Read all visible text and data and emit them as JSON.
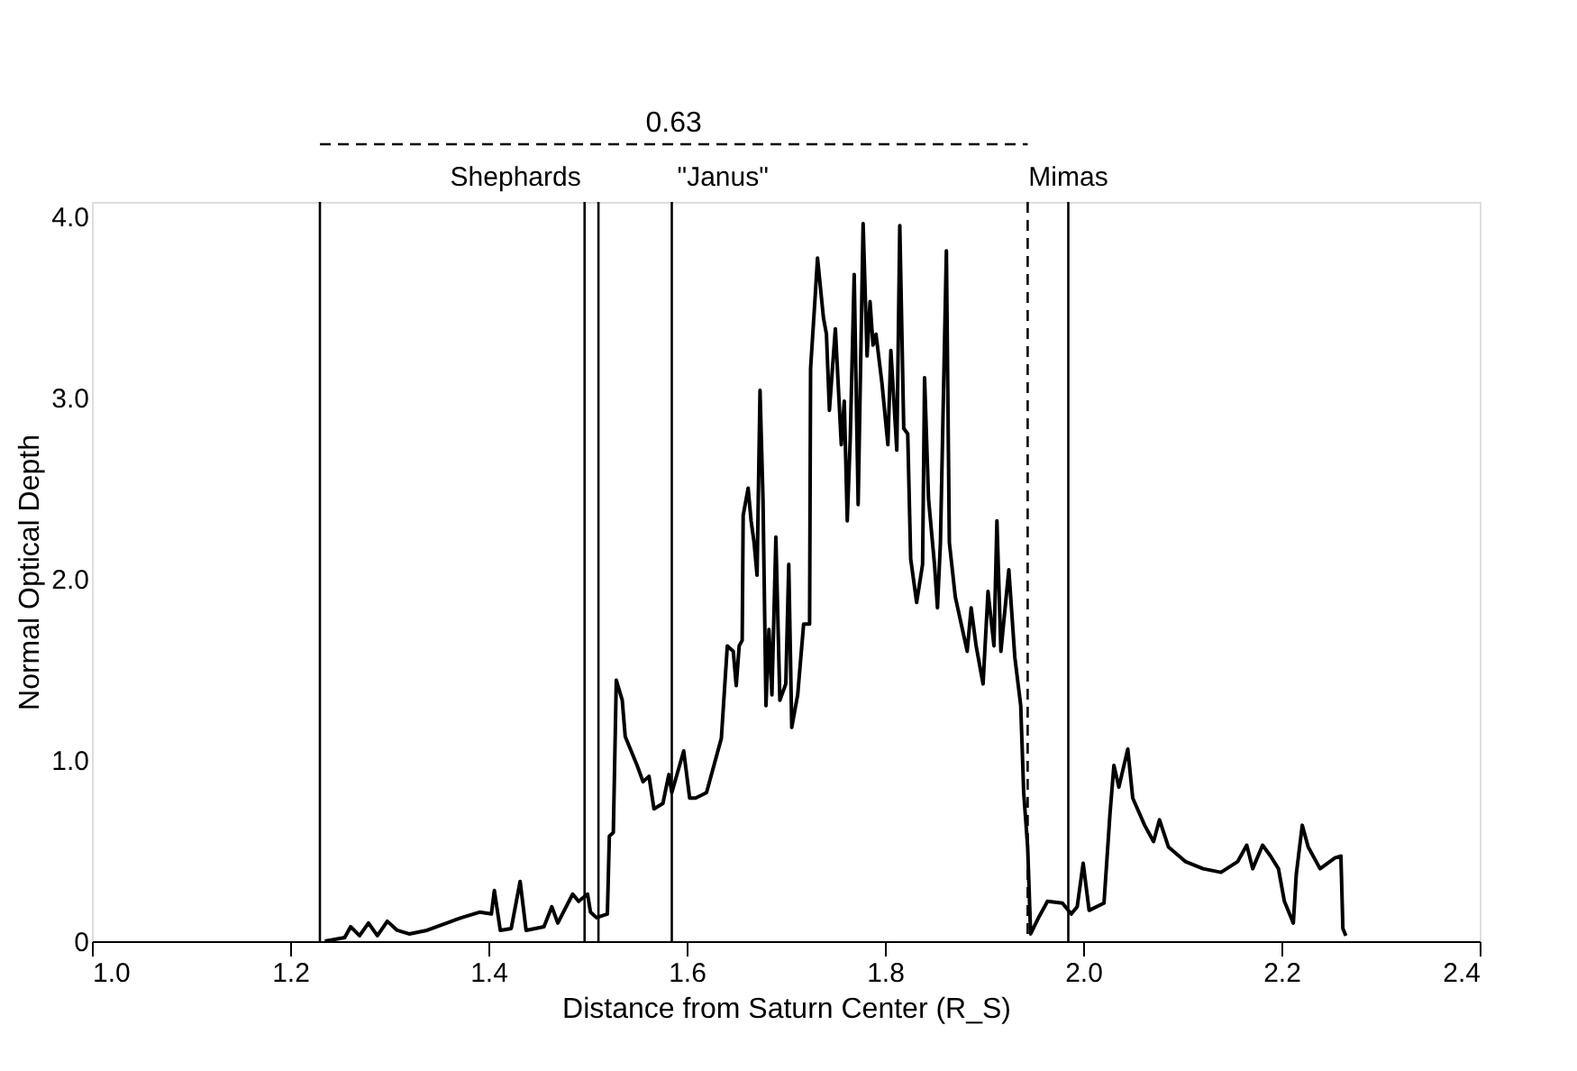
{
  "chart_data": {
    "type": "line",
    "xlabel": "Distance from Saturn Center (R_S)",
    "ylabel": "Normal Optical Depth",
    "x": [
      1.235,
      1.255,
      1.261,
      1.27,
      1.279,
      1.288,
      1.298,
      1.308,
      1.32,
      1.338,
      1.358,
      1.373,
      1.391,
      1.403,
      1.406,
      1.412,
      1.423,
      1.432,
      1.438,
      1.456,
      1.464,
      1.47,
      1.485,
      1.491,
      1.5,
      1.503,
      1.509,
      1.52,
      1.522,
      1.526,
      1.529,
      1.535,
      1.538,
      1.55,
      1.556,
      1.562,
      1.567,
      1.576,
      1.582,
      1.585,
      1.597,
      1.603,
      1.609,
      1.62,
      1.635,
      1.641,
      1.647,
      1.65,
      1.653,
      1.656,
      1.657,
      1.662,
      1.665,
      1.668,
      1.671,
      1.674,
      1.677,
      1.68,
      1.683,
      1.686,
      1.69,
      1.694,
      1.7,
      1.703,
      1.706,
      1.712,
      1.718,
      1.724,
      1.725,
      1.73,
      1.732,
      1.738,
      1.741,
      1.744,
      1.75,
      1.756,
      1.759,
      1.762,
      1.765,
      1.769,
      1.773,
      1.778,
      1.782,
      1.785,
      1.788,
      1.791,
      1.797,
      1.803,
      1.806,
      1.812,
      1.815,
      1.819,
      1.823,
      1.826,
      1.832,
      1.838,
      1.84,
      1.844,
      1.85,
      1.853,
      1.856,
      1.862,
      1.865,
      1.871,
      1.877,
      1.883,
      1.887,
      1.892,
      1.899,
      1.904,
      1.91,
      1.913,
      1.917,
      1.925,
      1.928,
      1.931,
      1.937,
      1.94,
      1.944,
      1.947,
      1.955,
      1.964,
      1.979,
      1.988,
      1.994,
      2.0,
      2.006,
      2.021,
      2.027,
      2.031,
      2.036,
      2.045,
      2.05,
      2.062,
      2.071,
      2.077,
      2.086,
      2.103,
      2.121,
      2.139,
      2.156,
      2.165,
      2.171,
      2.181,
      2.189,
      2.197,
      2.203,
      2.212,
      2.215,
      2.221,
      2.227,
      2.239,
      2.254,
      2.26,
      2.262,
      2.265
    ],
    "series": [
      {
        "color": "#000000",
        "values": [
          0,
          0.02,
          0.08,
          0.03,
          0.1,
          0.03,
          0.11,
          0.06,
          0.04,
          0.06,
          0.1,
          0.13,
          0.16,
          0.15,
          0.28,
          0.06,
          0.07,
          0.33,
          0.06,
          0.08,
          0.19,
          0.1,
          0.26,
          0.22,
          0.26,
          0.16,
          0.13,
          0.15,
          0.58,
          0.6,
          1.44,
          1.33,
          1.13,
          0.97,
          0.88,
          0.91,
          0.73,
          0.76,
          0.92,
          0.82,
          1.05,
          0.79,
          0.79,
          0.82,
          1.12,
          1.63,
          1.6,
          1.41,
          1.63,
          1.66,
          2.35,
          2.5,
          2.32,
          2.2,
          2.02,
          3.04,
          2.44,
          1.3,
          1.72,
          1.36,
          2.23,
          1.33,
          1.42,
          2.08,
          1.18,
          1.36,
          1.75,
          1.75,
          3.16,
          3.59,
          3.77,
          3.44,
          3.35,
          2.93,
          3.38,
          2.74,
          2.98,
          2.32,
          2.77,
          3.68,
          2.41,
          3.96,
          3.23,
          3.53,
          3.29,
          3.35,
          3.08,
          2.74,
          3.26,
          2.71,
          3.95,
          2.83,
          2.8,
          2.11,
          1.87,
          2.08,
          3.11,
          2.44,
          2.08,
          1.84,
          2.2,
          3.81,
          2.2,
          1.9,
          1.75,
          1.6,
          1.84,
          1.63,
          1.42,
          1.93,
          1.63,
          2.32,
          1.6,
          2.05,
          1.81,
          1.57,
          1.3,
          0.82,
          0.52,
          0.04,
          0.13,
          0.22,
          0.21,
          0.15,
          0.19,
          0.43,
          0.17,
          0.21,
          0.7,
          0.97,
          0.85,
          1.06,
          0.79,
          0.64,
          0.55,
          0.67,
          0.52,
          0.44,
          0.4,
          0.38,
          0.44,
          0.53,
          0.4,
          0.53,
          0.47,
          0.4,
          0.22,
          0.1,
          0.37,
          0.64,
          0.52,
          0.4,
          0.46,
          0.47,
          0.07,
          0.03
        ]
      }
    ],
    "xlim": [
      1.0,
      2.4
    ],
    "ylim": [
      0,
      4.08
    ],
    "xticks": [
      {
        "value": 1.0,
        "label": "1.0"
      },
      {
        "value": 1.2,
        "label": "1.2"
      },
      {
        "value": 1.4,
        "label": "1.4"
      },
      {
        "value": 1.6,
        "label": "1.6"
      },
      {
        "value": 1.8,
        "label": "1.8"
      },
      {
        "value": 2.0,
        "label": "2.0"
      },
      {
        "value": 2.2,
        "label": "2.2"
      },
      {
        "value": 2.4,
        "label": "2.4"
      }
    ],
    "yticks": [
      {
        "value": 0,
        "label": "0"
      },
      {
        "value": 1,
        "label": "1.0"
      },
      {
        "value": 2,
        "label": "2.0"
      },
      {
        "value": 3,
        "label": "3.0"
      },
      {
        "value": 4,
        "label": "4.0"
      }
    ],
    "ref_lines": [
      {
        "axis": "x",
        "value": 1.23
      },
      {
        "axis": "x",
        "value": 1.497,
        "label": "Shephards"
      },
      {
        "axis": "x",
        "value": 1.511
      },
      {
        "axis": "x",
        "value": 1.585,
        "label": "\"Janus\""
      },
      {
        "axis": "x",
        "value": 1.944,
        "line_style": "dashed"
      },
      {
        "axis": "x",
        "value": 1.985,
        "label": "Mimas"
      }
    ],
    "annotations": [
      "0.63"
    ],
    "grid": false,
    "marker": "none",
    "line_style": "solid"
  }
}
